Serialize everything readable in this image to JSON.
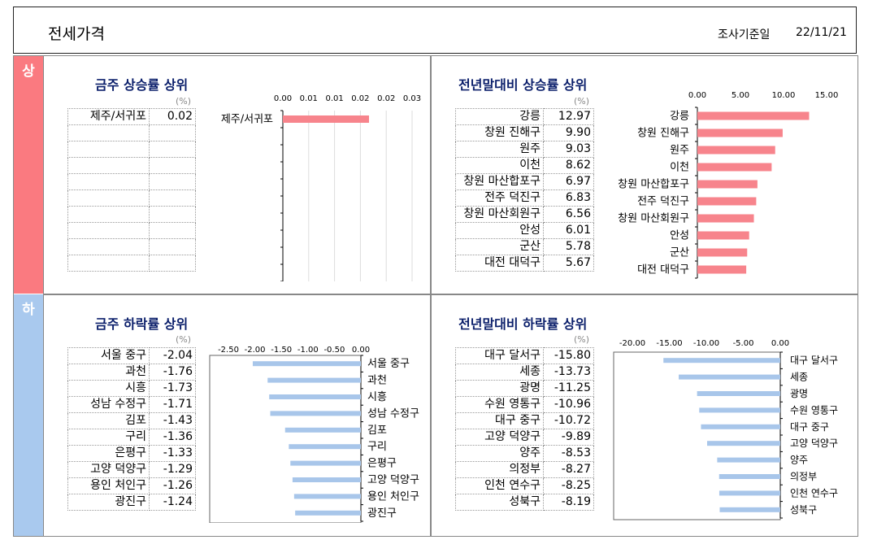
{
  "header": {
    "title": "전세가격",
    "date_label": "조사기준일",
    "date_value": "22/11/21"
  },
  "sections": {
    "up_label": "상",
    "down_label": "하"
  },
  "panels": {
    "week_up": {
      "title": "금주 상승률 상위",
      "unit": "(%)"
    },
    "year_up": {
      "title": "전년말대비 상승률 상위",
      "unit": "(%)"
    },
    "week_down": {
      "title": "금주 하락률 상위",
      "unit": "(%)"
    },
    "year_down": {
      "title": "전년말대비 하락률 상위",
      "unit": "(%)"
    }
  },
  "colors": {
    "up": "#f7848c",
    "down": "#a8c6ea",
    "title": "#0b1f6b"
  },
  "chart_data": [
    {
      "id": "week_up",
      "type": "bar",
      "orientation": "horizontal",
      "categories": [
        "제주/서귀포"
      ],
      "values": [
        0.02
      ],
      "value_labels": [
        "0.02"
      ],
      "rows": 10,
      "xlim": [
        0,
        0.03
      ],
      "tick_labels": [
        "0.00",
        "0.01",
        "0.01",
        "0.02",
        "0.02",
        "0.03"
      ]
    },
    {
      "id": "year_up",
      "type": "bar",
      "orientation": "horizontal",
      "categories": [
        "강릉",
        "창원 진해구",
        "원주",
        "이천",
        "창원 마산합포구",
        "전주 덕진구",
        "창원 마산회원구",
        "안성",
        "군산",
        "대전 대덕구"
      ],
      "values": [
        12.97,
        9.9,
        9.03,
        8.62,
        6.97,
        6.83,
        6.56,
        6.01,
        5.78,
        5.67
      ],
      "value_labels": [
        "12.97",
        "9.90",
        "9.03",
        "8.62",
        "6.97",
        "6.83",
        "6.56",
        "6.01",
        "5.78",
        "5.67"
      ],
      "rows": 10,
      "xlim": [
        0,
        15
      ],
      "tick_labels": [
        "0.00",
        "5.00",
        "10.00",
        "15.00"
      ]
    },
    {
      "id": "week_down",
      "type": "bar",
      "orientation": "horizontal",
      "categories": [
        "서울 중구",
        "과천",
        "시흥",
        "성남 수정구",
        "김포",
        "구리",
        "은평구",
        "고양 덕양구",
        "용인 처인구",
        "광진구"
      ],
      "values": [
        -2.04,
        -1.76,
        -1.73,
        -1.71,
        -1.43,
        -1.36,
        -1.33,
        -1.29,
        -1.26,
        -1.24
      ],
      "value_labels": [
        "-2.04",
        "-1.76",
        "-1.73",
        "-1.71",
        "-1.43",
        "-1.36",
        "-1.33",
        "-1.29",
        "-1.26",
        "-1.24"
      ],
      "rows": 10,
      "xlim": [
        -2.5,
        0
      ],
      "tick_labels": [
        "-2.50",
        "-2.00",
        "-1.50",
        "-1.00",
        "-0.50",
        "0.00"
      ]
    },
    {
      "id": "year_down",
      "type": "bar",
      "orientation": "horizontal",
      "categories": [
        "대구 달서구",
        "세종",
        "광명",
        "수원 영통구",
        "대구 중구",
        "고양 덕양구",
        "양주",
        "의정부",
        "인천 연수구",
        "성북구"
      ],
      "values": [
        -15.8,
        -13.73,
        -11.25,
        -10.96,
        -10.72,
        -9.89,
        -8.53,
        -8.27,
        -8.25,
        -8.19
      ],
      "value_labels": [
        "-15.80",
        "-13.73",
        "-11.25",
        "-10.96",
        "-10.72",
        "-9.89",
        "-8.53",
        "-8.27",
        "-8.25",
        "-8.19"
      ],
      "rows": 10,
      "xlim": [
        -20,
        0
      ],
      "tick_labels": [
        "-20.00",
        "-15.00",
        "-10.00",
        "-5.00",
        "0.00"
      ]
    }
  ]
}
